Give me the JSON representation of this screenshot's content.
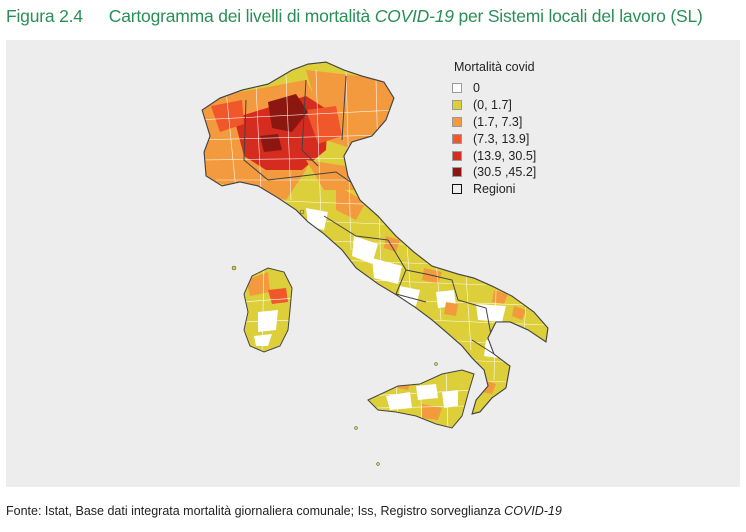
{
  "figure": {
    "number": "Figura 2.4",
    "title_before": "Cartogramma dei livelli di mortalità ",
    "title_italic": "COVID-19",
    "title_after": " per Sistemi locali del lavoro (SL)"
  },
  "legend": {
    "title": "Mortalità covid",
    "classes": [
      {
        "label": "0",
        "color": "#ffffff"
      },
      {
        "label": "(0, 1.7]",
        "color": "#dccf3a"
      },
      {
        "label": "(1.7, 7.3]",
        "color": "#f29a3d"
      },
      {
        "label": "(7.3, 13.9]",
        "color": "#f0572a"
      },
      {
        "label": "(13.9, 30.5]",
        "color": "#d62b1f"
      },
      {
        "label": "(30.5 ,45.2]",
        "color": "#8c1710"
      }
    ],
    "regions_label": "Regioni"
  },
  "source": {
    "text": "Fonte: Istat, Base dati integrata mortalità giornaliera comunale; Iss, Registro sorveglianza ",
    "italic": "COVID-19"
  },
  "colors": {
    "background": "#ededed",
    "title_green": "#2a8f57",
    "region_border": "#444444",
    "sl_border": "#ffffff"
  }
}
